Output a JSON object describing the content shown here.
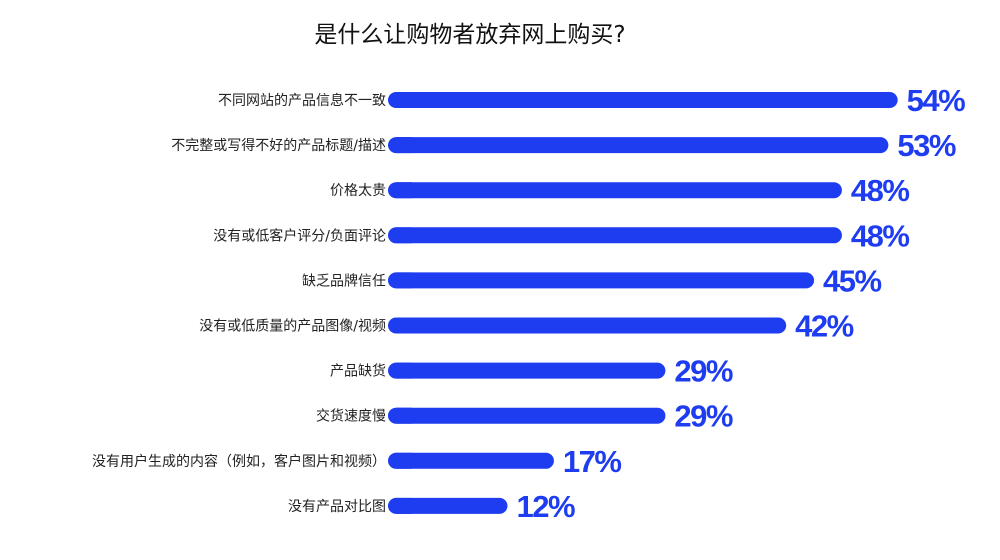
{
  "chart_data": {
    "type": "bar",
    "orientation": "horizontal",
    "title": "是什么让购物者放弃网上购买?",
    "categories": [
      "不同网站的产品信息不一致",
      "不完整或写得不好的产品标题/描述",
      "价格太贵",
      "没有或低客户评分/负面评论",
      "缺乏品牌信任",
      "没有或低质量的产品图像/视频",
      "产品缺货",
      "交货速度慢",
      "没有用户生成的内容（例如，客户图片和视频）",
      "没有产品对比图"
    ],
    "values": [
      54,
      53,
      48,
      48,
      45,
      42,
      29,
      29,
      17,
      12
    ],
    "value_labels": [
      "54%",
      "53%",
      "48%",
      "48%",
      "45%",
      "42%",
      "29%",
      "29%",
      "17%",
      "12%"
    ],
    "unit": "%",
    "xlim": [
      0,
      54
    ],
    "grid": false,
    "legend": "none",
    "bar_color": "#1e3cf0",
    "label_color": "#1e3cf0"
  }
}
